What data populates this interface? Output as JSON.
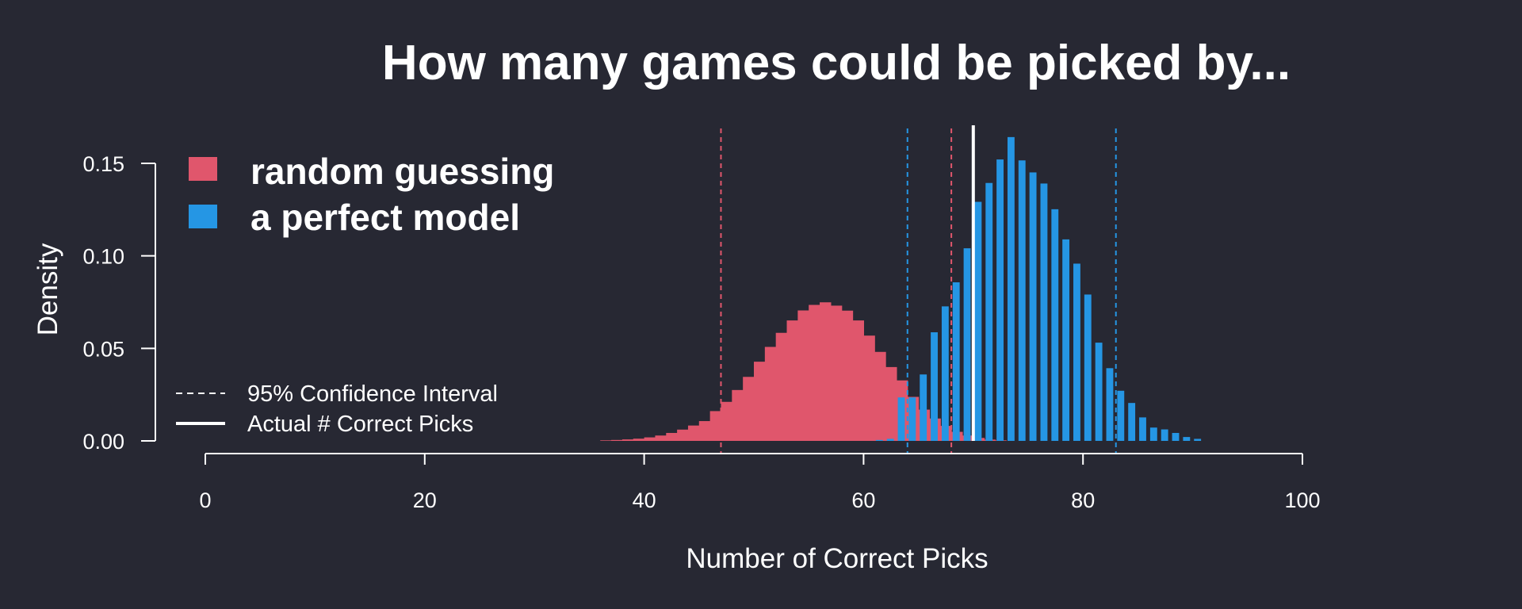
{
  "colors": {
    "background": "#272833",
    "random": "#e0566c",
    "perfect": "#2596e4",
    "foreground": "#ffffff"
  },
  "chart_data": {
    "type": "histogram",
    "title": "How many games could be picked by...",
    "xlabel": "Number of Correct Picks",
    "ylabel": "Density",
    "xlim": [
      0,
      100
    ],
    "ylim": [
      0,
      0.15
    ],
    "xticks": [
      "0",
      "20",
      "40",
      "60",
      "80",
      "100"
    ],
    "yticks": [
      "0.00",
      "0.05",
      "0.10",
      "0.15"
    ],
    "grid": false,
    "series": [
      {
        "name": "random guessing",
        "color": "#e0566c",
        "x": [
          37,
          38,
          39,
          40,
          41,
          42,
          43,
          44,
          45,
          46,
          47,
          48,
          49,
          50,
          51,
          52,
          53,
          54,
          55,
          56,
          57,
          58,
          59,
          60,
          61,
          62,
          63,
          64,
          65,
          66,
          67,
          68,
          69,
          70,
          71,
          72,
          73
        ],
        "density": [
          0.0003,
          0.0005,
          0.0008,
          0.0012,
          0.0019,
          0.0029,
          0.0043,
          0.0061,
          0.0083,
          0.0107,
          0.0161,
          0.0211,
          0.0275,
          0.0346,
          0.0428,
          0.0508,
          0.0584,
          0.0651,
          0.0705,
          0.0735,
          0.0749,
          0.0731,
          0.0704,
          0.0651,
          0.0569,
          0.0481,
          0.0399,
          0.0327,
          0.0238,
          0.0169,
          0.0121,
          0.0081,
          0.0049,
          0.0029,
          0.0016,
          0.0007,
          0.0003
        ]
      },
      {
        "name": "a perfect model",
        "color": "#2596e4",
        "x": [
          62,
          63,
          64,
          65,
          66,
          67,
          68,
          69,
          70,
          71,
          72,
          73,
          74,
          75,
          76,
          77,
          78,
          79,
          80,
          81,
          82,
          83,
          84,
          85,
          86,
          87,
          88,
          89,
          90,
          91
        ],
        "density": [
          0.0005,
          0.0011,
          0.0235,
          0.0235,
          0.0359,
          0.0587,
          0.0727,
          0.0857,
          0.1041,
          0.1292,
          0.1394,
          0.1521,
          0.1642,
          0.1516,
          0.1451,
          0.1391,
          0.1252,
          0.1089,
          0.0958,
          0.0791,
          0.0531,
          0.0393,
          0.0271,
          0.0205,
          0.0127,
          0.0072,
          0.0062,
          0.0043,
          0.0021,
          0.0011
        ]
      }
    ],
    "vlines": [
      {
        "series": "random guessing",
        "style": "dashed",
        "x": 47
      },
      {
        "series": "random guessing",
        "style": "dashed",
        "x": 68
      },
      {
        "series": "a perfect model",
        "style": "dashed",
        "x": 64
      },
      {
        "series": "a perfect model",
        "style": "dashed",
        "x": 83
      },
      {
        "series": "actual",
        "style": "solid",
        "x": 70
      }
    ],
    "legend_main": {
      "placement": "top-left",
      "entries": [
        "random guessing",
        "a perfect model"
      ]
    },
    "legend_lines": {
      "placement": "bottom-left",
      "entries": [
        "95% Confidence Interval",
        "Actual # Correct Picks"
      ]
    }
  }
}
